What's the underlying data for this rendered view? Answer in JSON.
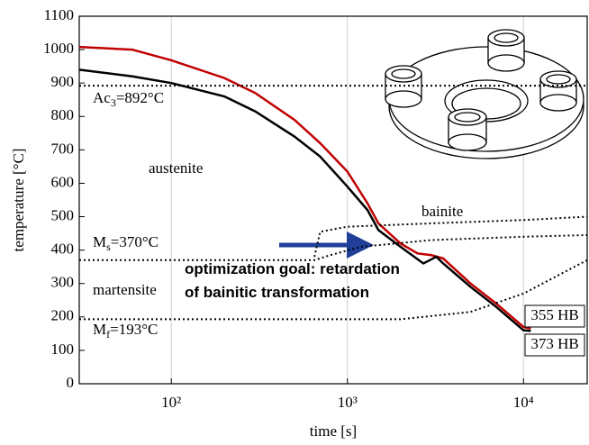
{
  "chart_data": {
    "type": "line",
    "x_scale": "log",
    "xlabel": "time [s]",
    "ylabel": "temperature [°C]",
    "xlim": [
      30,
      23000
    ],
    "ylim": [
      0,
      1100
    ],
    "xticks": [
      {
        "value": 100,
        "label": "10²"
      },
      {
        "value": 1000,
        "label": "10³"
      },
      {
        "value": 10000,
        "label": "10⁴"
      }
    ],
    "yticks": [
      0,
      100,
      200,
      300,
      400,
      500,
      600,
      700,
      800,
      900,
      1000,
      1100
    ],
    "grid": true,
    "series": [
      {
        "color": "#c00000",
        "dash": "solid",
        "x": [
          30,
          60,
          100,
          200,
          300,
          500,
          700,
          1000,
          1300,
          1500,
          2000,
          2500,
          3000,
          3500,
          5000,
          7000,
          10000,
          11000
        ],
        "values": [
          1008,
          1000,
          968,
          915,
          870,
          790,
          720,
          635,
          540,
          480,
          420,
          390,
          385,
          375,
          300,
          240,
          170,
          165
        ]
      },
      {
        "color": "#000000",
        "dash": "solid",
        "x": [
          30,
          60,
          100,
          200,
          300,
          500,
          700,
          1000,
          1300,
          1500,
          2000,
          2700,
          3200,
          3500,
          5000,
          7000,
          10000,
          11000
        ],
        "values": [
          940,
          920,
          900,
          860,
          815,
          740,
          680,
          590,
          520,
          460,
          410,
          360,
          380,
          360,
          290,
          230,
          160,
          158
        ]
      },
      {
        "color": "#000000",
        "dash": "dotted",
        "x": [
          30,
          23000
        ],
        "values": [
          892,
          892
        ]
      },
      {
        "color": "#000000",
        "dash": "dotted",
        "x": [
          30,
          650,
          800,
          1200,
          3000,
          10000,
          23000
        ],
        "values": [
          370,
          370,
          385,
          410,
          430,
          440,
          445
        ]
      },
      {
        "color": "#000000",
        "dash": "dotted",
        "x": [
          650,
          700,
          1000,
          3000,
          10000,
          23000
        ],
        "values": [
          380,
          455,
          470,
          480,
          490,
          500
        ]
      },
      {
        "color": "#000000",
        "dash": "dotted",
        "x": [
          30,
          2000,
          5000,
          10000,
          23000
        ],
        "values": [
          193,
          193,
          215,
          270,
          370
        ]
      }
    ],
    "annotations": [
      {
        "text": "Ac",
        "sub": "3",
        "tail": "=892°C"
      },
      {
        "text": "austenite"
      },
      {
        "text": "bainite"
      },
      {
        "text": "M",
        "sub": "s",
        "tail": "=370°C"
      },
      {
        "text": "optimization goal: retardation",
        "bold": true
      },
      {
        "text": "of bainitic transformation",
        "bold": true
      },
      {
        "text": "martensite"
      },
      {
        "text": "M",
        "sub": "f",
        "tail": "=193°C"
      },
      {
        "text": "355 HB",
        "boxed": true
      },
      {
        "text": "373 HB",
        "boxed": true
      }
    ]
  }
}
